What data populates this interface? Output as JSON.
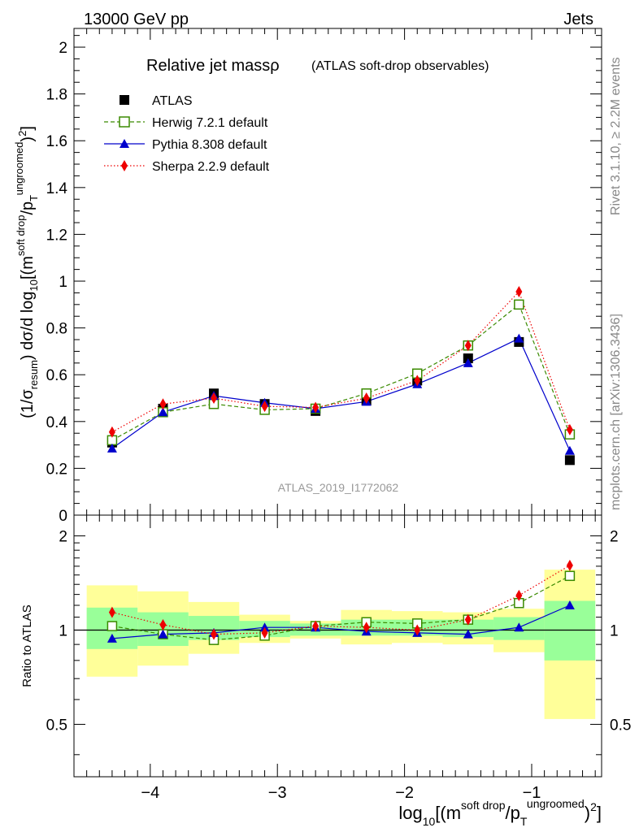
{
  "header": {
    "left": "13000 GeV pp",
    "right": "Jets"
  },
  "side_texts": {
    "rivet": "Rivet 3.1.10, ≥ 2.2M events",
    "mcplots": "mcplots.cern.ch [arXiv:1306.3436]"
  },
  "plot": {
    "title_main": "Relative jet massρ",
    "title_sub": "(ATLAS soft-drop observables)",
    "analysis_id": "ATLAS_2019_I1772062",
    "ylabel": "(1/σresum) dσ/d log10[(msoft drop/pTungroomed)2]",
    "ratio_ylabel": "Ratio to ATLAS",
    "xlabel": "log10[(msoft drop/pTungroomed)2]"
  },
  "colors": {
    "atlas": "#000000",
    "herwig": "#3a8a00",
    "pythia": "#0000cc",
    "sherpa": "#ee0000",
    "band_inner": "#99ff99",
    "band_outer": "#ffff99"
  },
  "chart_data": [
    {
      "type": "line",
      "panel": "main",
      "xlim": [
        -4.6,
        -0.45
      ],
      "ylim": [
        0,
        2.08
      ],
      "x_ticks": [
        -4,
        -3,
        -2,
        -1
      ],
      "y_ticks": [
        0,
        0.2,
        0.4,
        0.6,
        0.8,
        1,
        1.2,
        1.4,
        1.6,
        1.8,
        2
      ],
      "y_tick_labels": [
        "0",
        "0.2",
        "0.4",
        "0.6",
        "0.8",
        "1",
        "1.2",
        "1.4",
        "1.6",
        "1.8",
        "2"
      ],
      "legend_position": "top-left",
      "x": [
        -4.3,
        -3.9,
        -3.5,
        -3.1,
        -2.7,
        -2.3,
        -1.9,
        -1.5,
        -1.1,
        -0.7
      ],
      "series": [
        {
          "name": "ATLAS",
          "marker": "square",
          "values": [
            0.31,
            0.455,
            0.52,
            0.475,
            0.445,
            0.49,
            0.575,
            0.67,
            0.74,
            0.235
          ]
        },
        {
          "name": "Herwig 7.2.1 default",
          "marker": "open-square",
          "line": "dashed",
          "values": [
            0.32,
            0.44,
            0.475,
            0.45,
            0.455,
            0.52,
            0.605,
            0.725,
            0.9,
            0.345
          ]
        },
        {
          "name": "Pythia 8.308 default",
          "marker": "triangle",
          "line": "solid",
          "values": [
            0.285,
            0.44,
            0.51,
            0.48,
            0.455,
            0.485,
            0.56,
            0.65,
            0.755,
            0.275
          ]
        },
        {
          "name": "Sherpa 2.2.9 default",
          "marker": "diamond",
          "line": "dotted",
          "values": [
            0.355,
            0.475,
            0.5,
            0.465,
            0.46,
            0.5,
            0.575,
            0.725,
            0.955,
            0.365
          ]
        }
      ]
    },
    {
      "type": "line",
      "panel": "ratio",
      "xlim": [
        -4.6,
        -0.45
      ],
      "ylim": [
        0.34,
        2.33
      ],
      "y_ticks": [
        0.5,
        1,
        2
      ],
      "y_tick_labels": [
        "0.5",
        "1",
        "2"
      ],
      "x_ticks": [
        -4,
        -3,
        -2,
        -1
      ],
      "x_tick_labels": [
        "−4",
        "−3",
        "−2",
        "−1"
      ],
      "reference_line": 1,
      "bins": [
        {
          "lo": -4.5,
          "hi": -4.1,
          "inner": [
            0.87,
            1.18
          ],
          "outer": [
            0.71,
            1.39
          ]
        },
        {
          "lo": -4.1,
          "hi": -3.7,
          "inner": [
            0.89,
            1.14
          ],
          "outer": [
            0.77,
            1.33
          ]
        },
        {
          "lo": -3.7,
          "hi": -3.3,
          "inner": [
            0.93,
            1.11
          ],
          "outer": [
            0.84,
            1.23
          ]
        },
        {
          "lo": -3.3,
          "hi": -2.9,
          "inner": [
            0.95,
            1.07
          ],
          "outer": [
            0.91,
            1.12
          ]
        },
        {
          "lo": -2.9,
          "hi": -2.5,
          "inner": [
            0.96,
            1.05
          ],
          "outer": [
            0.94,
            1.07
          ]
        },
        {
          "lo": -2.5,
          "hi": -2.1,
          "inner": [
            0.96,
            1.08
          ],
          "outer": [
            0.9,
            1.16
          ]
        },
        {
          "lo": -2.1,
          "hi": -1.7,
          "inner": [
            0.96,
            1.08
          ],
          "outer": [
            0.91,
            1.15
          ]
        },
        {
          "lo": -1.7,
          "hi": -1.3,
          "inner": [
            0.95,
            1.08
          ],
          "outer": [
            0.9,
            1.14
          ]
        },
        {
          "lo": -1.3,
          "hi": -0.9,
          "inner": [
            0.93,
            1.1
          ],
          "outer": [
            0.85,
            1.17
          ]
        },
        {
          "lo": -0.9,
          "hi": -0.5,
          "inner": [
            0.8,
            1.24
          ],
          "outer": [
            0.52,
            1.56
          ]
        }
      ],
      "x": [
        -4.3,
        -3.9,
        -3.5,
        -3.1,
        -2.7,
        -2.3,
        -1.9,
        -1.5,
        -1.1,
        -0.7
      ],
      "series": [
        {
          "name": "Herwig 7.2.1 default",
          "values": [
            1.03,
            0.97,
            0.93,
            0.96,
            1.03,
            1.06,
            1.05,
            1.08,
            1.22,
            1.49
          ]
        },
        {
          "name": "Pythia 8.308 default",
          "values": [
            0.94,
            0.97,
            0.98,
            1.02,
            1.02,
            0.99,
            0.98,
            0.97,
            1.02,
            1.2
          ]
        },
        {
          "name": "Sherpa 2.2.9 default",
          "values": [
            1.14,
            1.04,
            0.97,
            0.98,
            1.03,
            1.02,
            1.0,
            1.08,
            1.29,
            1.61
          ]
        }
      ]
    }
  ]
}
